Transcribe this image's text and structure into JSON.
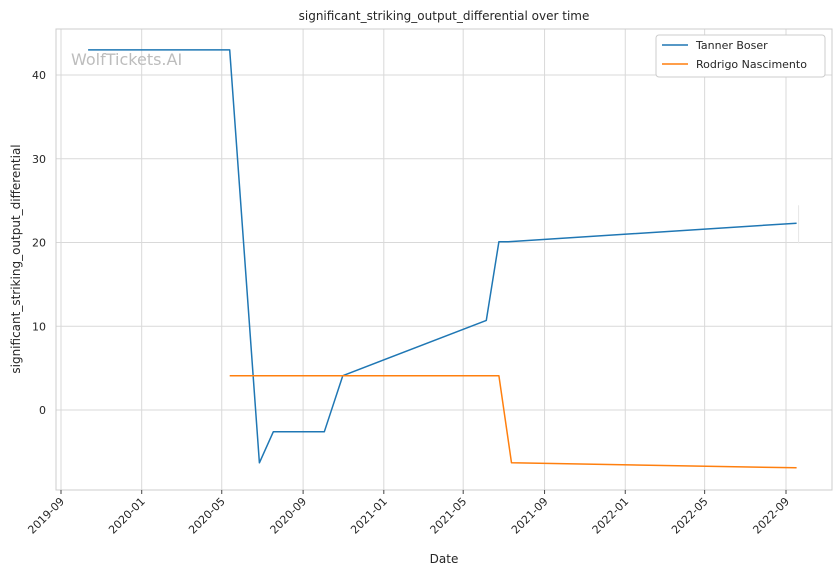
{
  "chart_data": {
    "type": "line",
    "title": "significant_striking_output_differential over time",
    "xlabel": "Date",
    "ylabel": "significant_striking_output_differential",
    "watermark": "WolfTickets.AI",
    "x_range": [
      "2019-09-01",
      "2022-09-01"
    ],
    "ylim": [
      -10,
      45
    ],
    "x_ticks": [
      "2019-09",
      "2020-01",
      "2020-05",
      "2020-09",
      "2021-01",
      "2021-05",
      "2021-09",
      "2022-01",
      "2022-05",
      "2022-09"
    ],
    "y_ticks": [
      0,
      10,
      20,
      30,
      40
    ],
    "grid": true,
    "legend_position": "top-right",
    "series": [
      {
        "name": "Tanner Boser",
        "color": "#1f77b4",
        "points": [
          {
            "x": "2019-10-12",
            "y": 43.0
          },
          {
            "x": "2020-05-13",
            "y": 43.0
          },
          {
            "x": "2020-06-27",
            "y": -6.3
          },
          {
            "x": "2020-07-18",
            "y": -2.6
          },
          {
            "x": "2020-10-03",
            "y": -2.6
          },
          {
            "x": "2020-10-31",
            "y": 4.1
          },
          {
            "x": "2021-06-05",
            "y": 10.7
          },
          {
            "x": "2021-06-24",
            "y": 20.1
          },
          {
            "x": "2021-07-08",
            "y": 20.1
          },
          {
            "x": "2022-09-17",
            "y": 22.3
          }
        ]
      },
      {
        "name": "Rodrigo Nascimento",
        "color": "#ff7f0e",
        "points": [
          {
            "x": "2020-05-13",
            "y": 4.1
          },
          {
            "x": "2021-06-24",
            "y": 4.1
          },
          {
            "x": "2021-07-13",
            "y": -6.3
          },
          {
            "x": "2022-09-17",
            "y": -6.9
          }
        ]
      }
    ]
  }
}
